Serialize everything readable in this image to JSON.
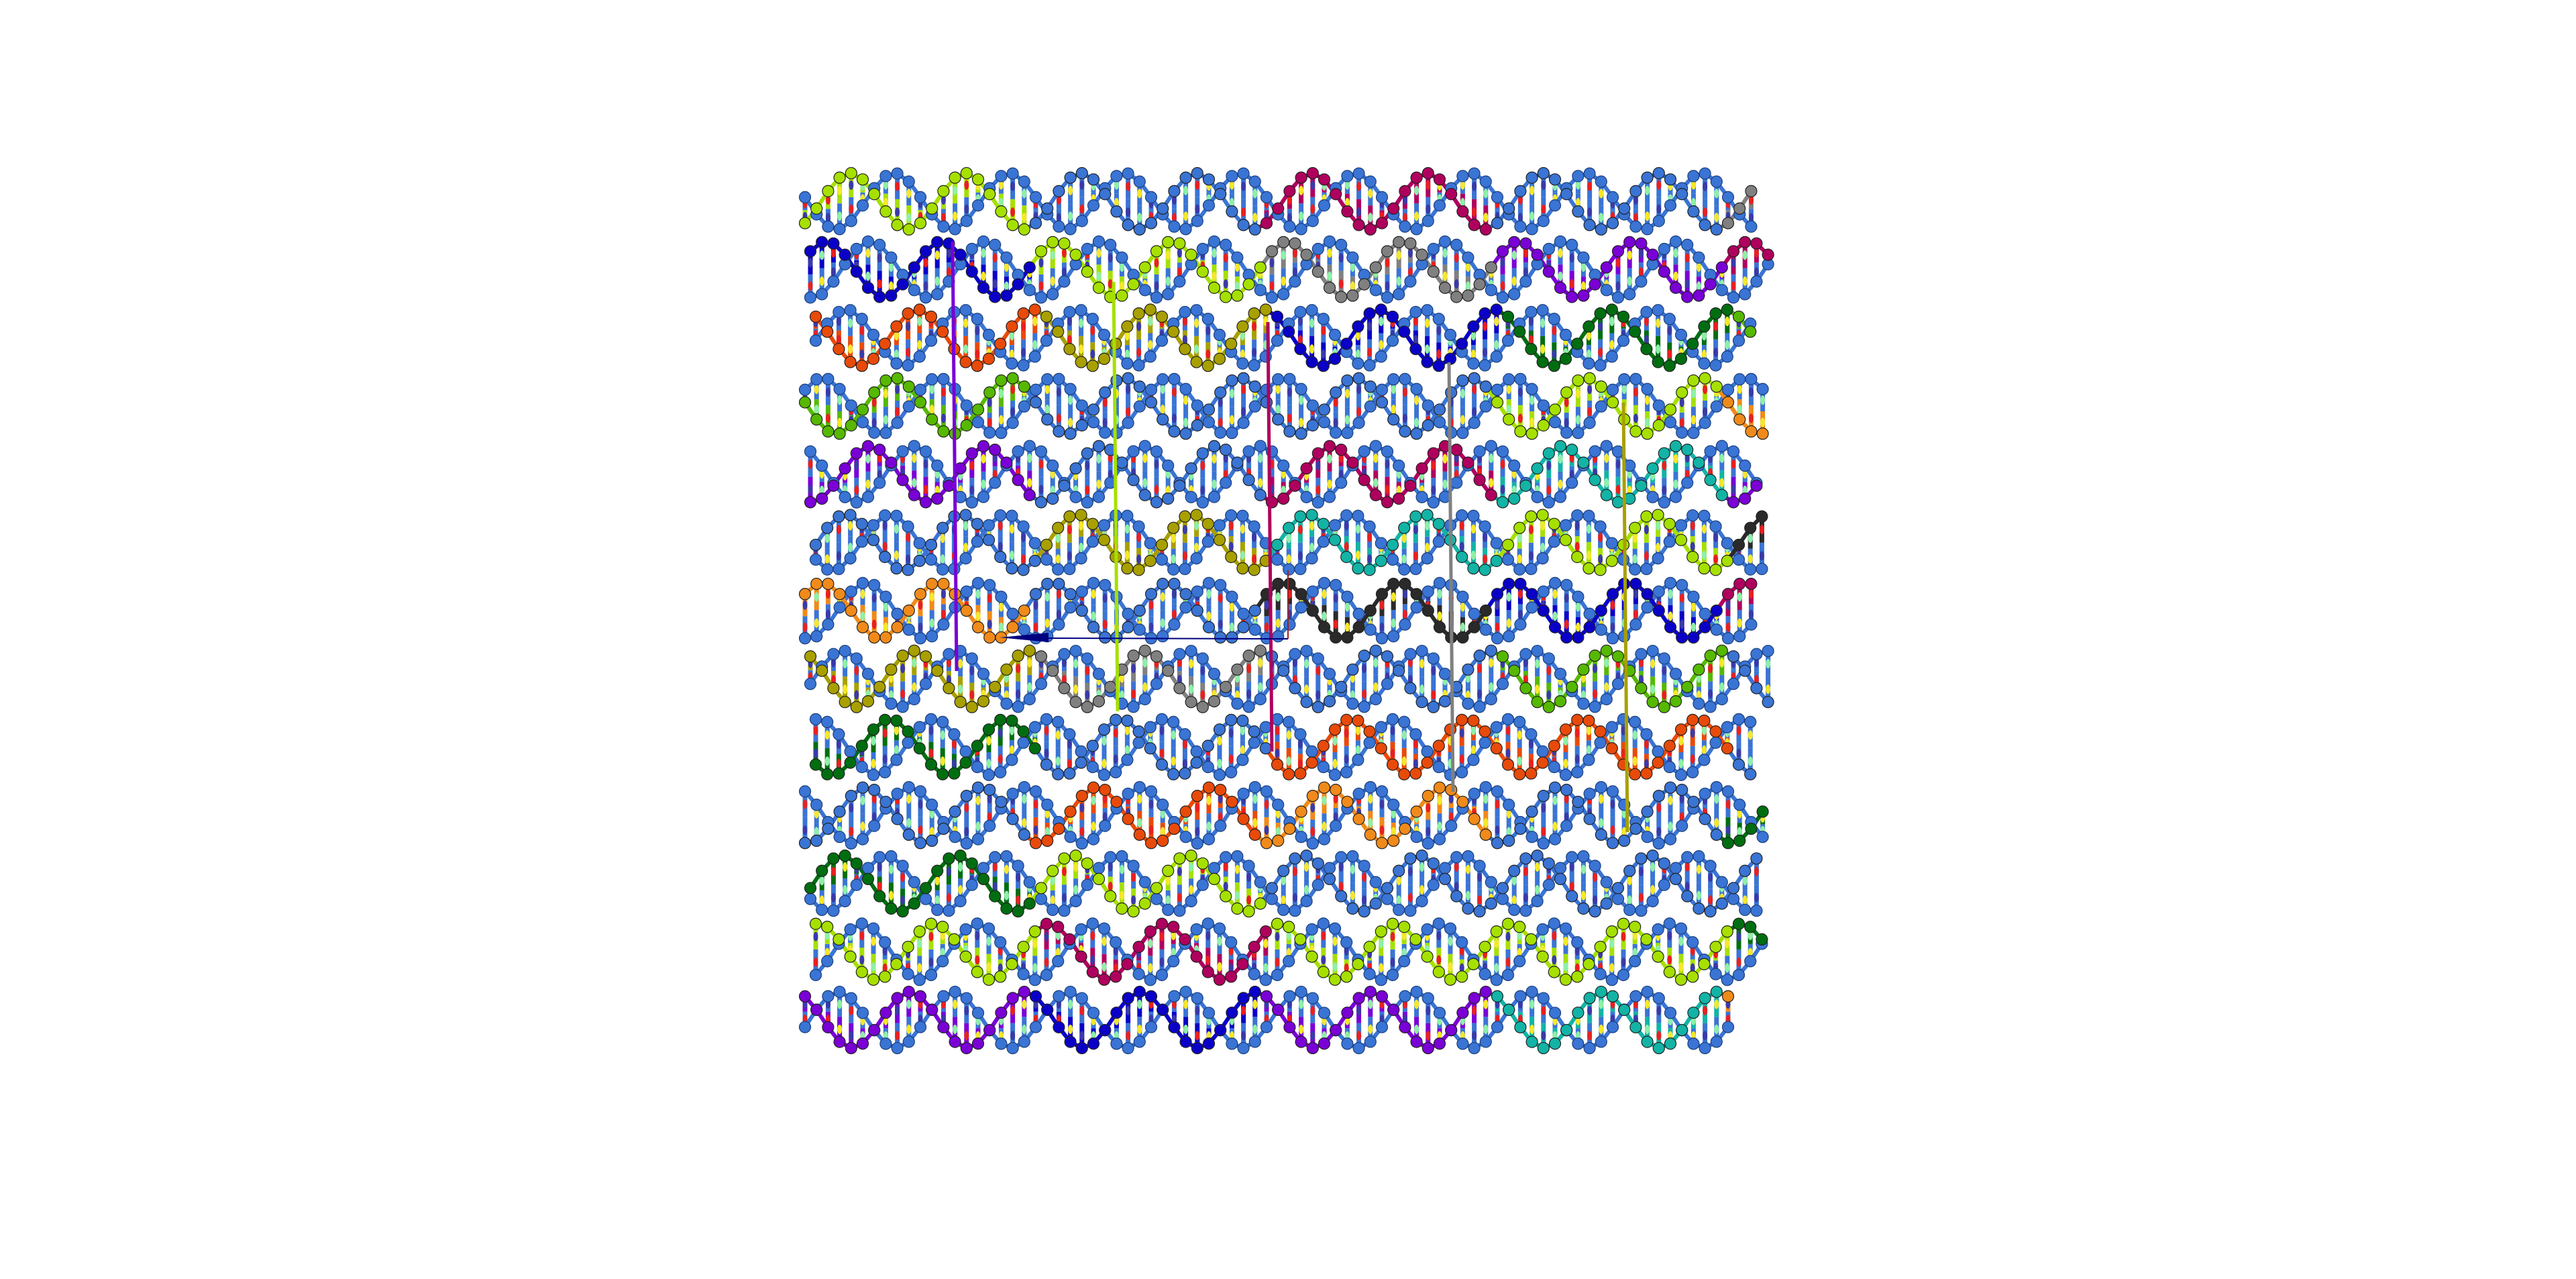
{
  "viewer": {
    "background": "#ffffff",
    "scaffold_color": "#3a74d4",
    "staple_colors": [
      "#7a00d6",
      "#e84a0a",
      "#13b3a6",
      "#a6e000",
      "#56b800",
      "#2a2a2a",
      "#b0005e",
      "#f08a1a",
      "#0a00c8",
      "#808080",
      "#c80010",
      "#006e10",
      "#a8a000"
    ],
    "base_colors": [
      "#e82020",
      "#f5e82a",
      "#3a3aa8",
      "#8ef0a8"
    ],
    "arrow_color": "#000080"
  }
}
